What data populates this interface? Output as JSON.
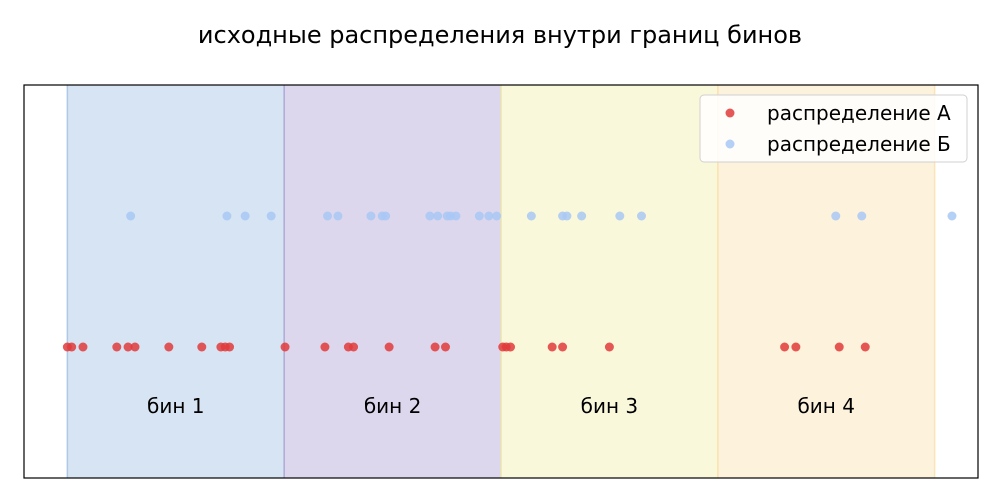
{
  "chart_data": {
    "type": "scatter",
    "title": "исходные распределения внутри границ бинов",
    "xlim": [
      -0.5,
      10.5
    ],
    "ylim": [
      -1.0,
      2.0
    ],
    "bins": [
      {
        "label": "бин 1",
        "start": 0,
        "end": 2.5,
        "color": "#a7c4e5"
      },
      {
        "label": "бин 2",
        "start": 2.5,
        "end": 5,
        "color": "#b3a7d6"
      },
      {
        "label": "бин 3",
        "start": 5,
        "end": 7.5,
        "color": "#f4f0b0"
      },
      {
        "label": "бин 4",
        "start": 7.5,
        "end": 10,
        "color": "#fbe2b0"
      }
    ],
    "bin_label_y": -0.45,
    "series": [
      {
        "name": "распределение А",
        "y": 0,
        "color": "#e03b3b",
        "x": [
          0.0,
          0.05,
          0.18,
          0.57,
          0.7,
          0.78,
          1.17,
          1.55,
          1.77,
          1.82,
          1.87,
          2.51,
          2.97,
          3.24,
          3.3,
          3.71,
          4.24,
          4.36,
          5.02,
          5.06,
          5.11,
          5.59,
          5.71,
          6.25,
          8.27,
          8.4,
          8.9,
          9.2
        ]
      },
      {
        "name": "распределение Б",
        "y": 1,
        "color": "#a8c8f5",
        "x": [
          0.73,
          1.84,
          2.05,
          2.35,
          3.0,
          3.12,
          3.5,
          3.63,
          3.67,
          4.18,
          4.27,
          4.38,
          4.42,
          4.48,
          4.75,
          4.86,
          4.95,
          5.35,
          5.71,
          5.76,
          5.93,
          6.37,
          6.62,
          8.86,
          9.16,
          10.2
        ]
      }
    ],
    "legend_placement": "top-right",
    "grid": false
  }
}
